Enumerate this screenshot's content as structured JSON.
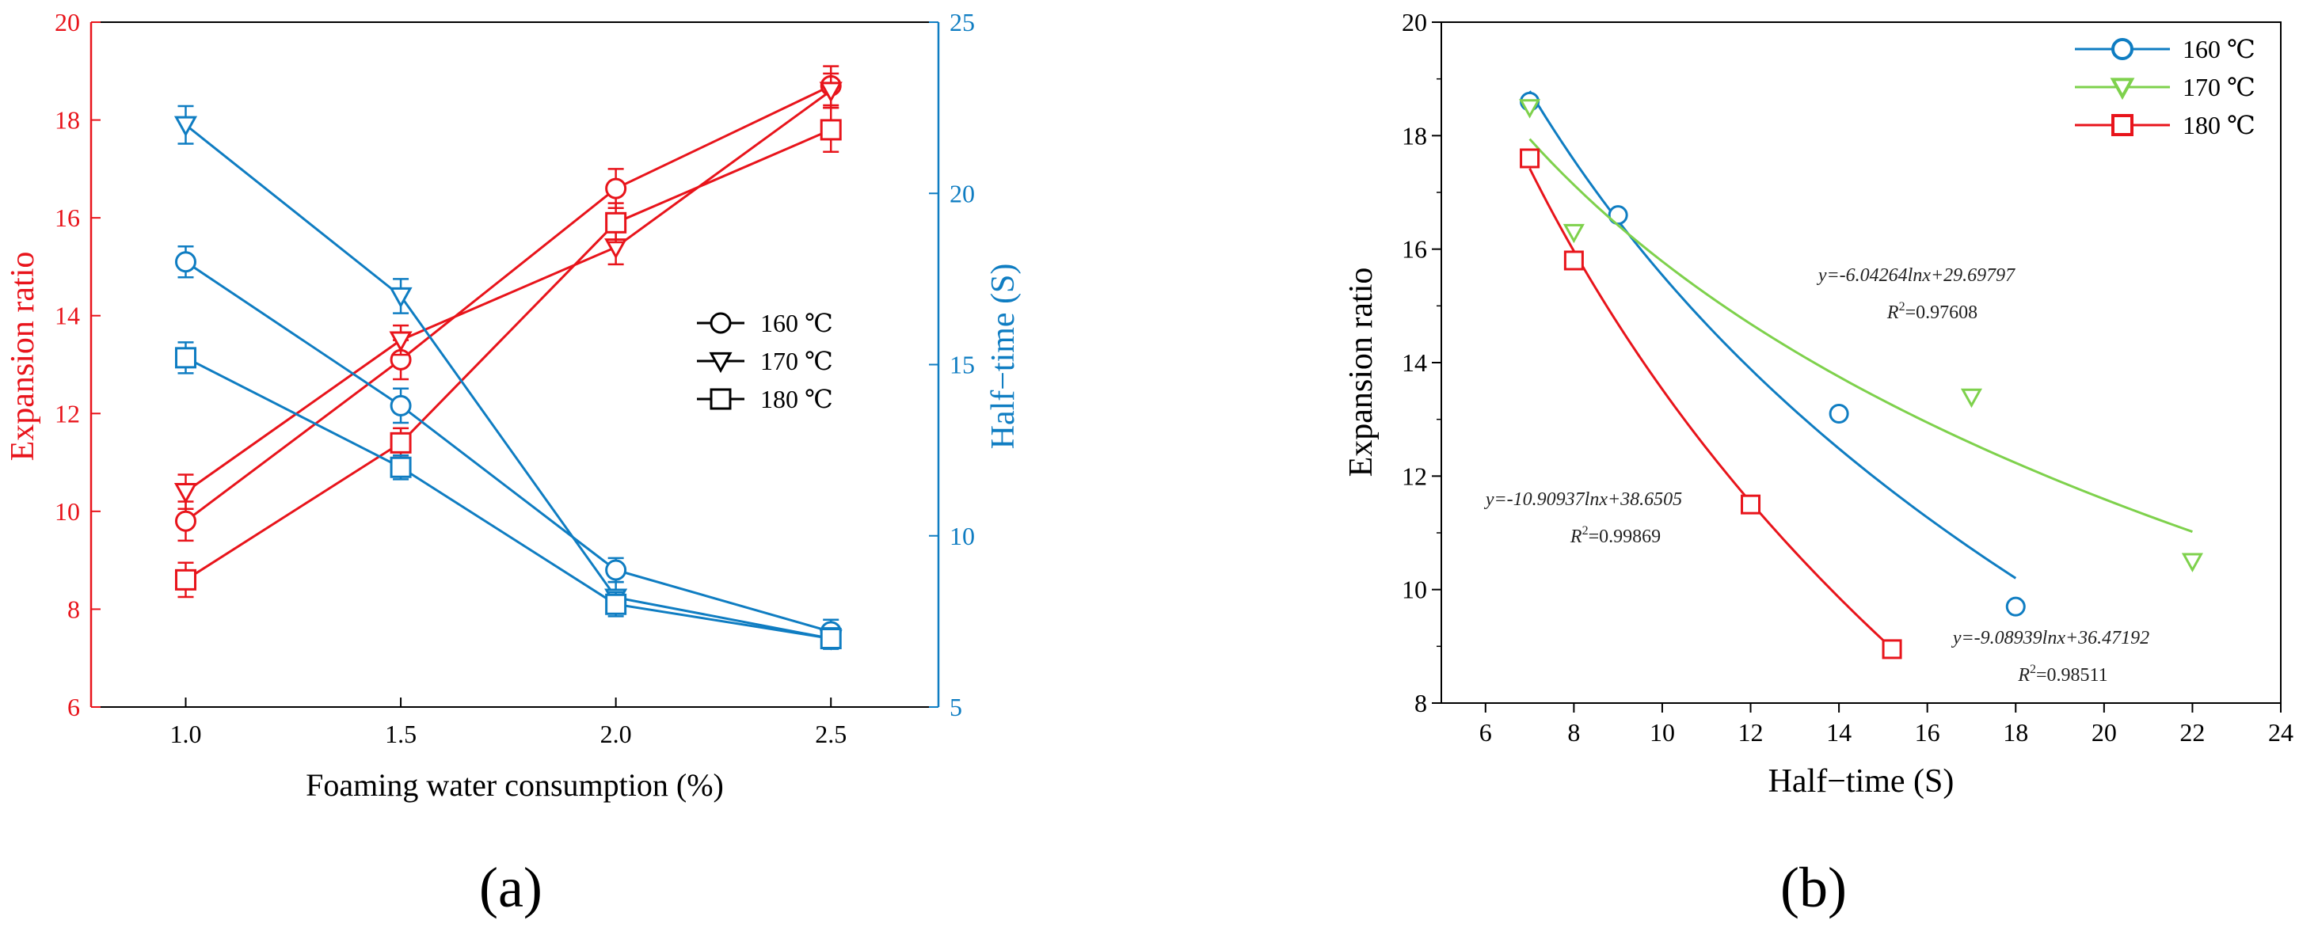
{
  "chart_data": [
    {
      "id": "a",
      "type": "line",
      "panel_label": "(a)",
      "xlabel": "Foaming water consumption (%)",
      "ylabel": "Expansion ratio",
      "y2label": "Half−time (S)",
      "x": [
        1.0,
        1.5,
        2.0,
        2.5
      ],
      "xticks": [
        "1.0",
        "1.5",
        "2.0",
        "2.5"
      ],
      "xlim": [
        0.78,
        2.75
      ],
      "ylim": [
        6,
        20
      ],
      "yticks": [
        "6",
        "8",
        "10",
        "12",
        "14",
        "16",
        "18",
        "20"
      ],
      "y2lim": [
        5,
        25
      ],
      "y2ticks": [
        "5",
        "10",
        "15",
        "20",
        "25"
      ],
      "left_color": "#e8141b",
      "right_color": "#0f7dc2",
      "legend": [
        "160 ℃",
        "170 ℃",
        "180 ℃"
      ],
      "series": [
        {
          "name": "160 ℃",
          "marker": "circle",
          "axis": "left",
          "values": [
            9.8,
            13.1,
            16.6,
            18.7
          ],
          "err": [
            0.4,
            0.4,
            0.4,
            0.4
          ]
        },
        {
          "name": "170 ℃",
          "marker": "triangle",
          "axis": "left",
          "values": [
            10.4,
            13.5,
            15.4,
            18.6
          ],
          "err": [
            0.35,
            0.3,
            0.35,
            0.35
          ]
        },
        {
          "name": "180 ℃",
          "marker": "square",
          "axis": "left",
          "values": [
            8.6,
            11.4,
            15.9,
            17.8
          ],
          "err": [
            0.35,
            0.3,
            0.4,
            0.45
          ]
        },
        {
          "name": "160 ℃",
          "marker": "circle",
          "axis": "right",
          "values": [
            18.0,
            13.8,
            9.0,
            7.2
          ],
          "err": [
            0.45,
            0.5,
            0.35,
            0.35
          ]
        },
        {
          "name": "170 ℃",
          "marker": "triangle",
          "axis": "right",
          "values": [
            22.0,
            17.0,
            8.2,
            7.0
          ],
          "err": [
            0.55,
            0.5,
            0.45,
            0.3
          ]
        },
        {
          "name": "180 ℃",
          "marker": "square",
          "axis": "right",
          "values": [
            15.2,
            12.0,
            8.0,
            7.0
          ],
          "err": [
            0.45,
            0.35,
            0.35,
            0.3
          ]
        }
      ]
    },
    {
      "id": "b",
      "type": "scatter",
      "panel_label": "(b)",
      "xlabel": "Half−time (S)",
      "ylabel": "Expansion ratio",
      "xlim": [
        5,
        24
      ],
      "xticks": [
        "6",
        "8",
        "10",
        "12",
        "14",
        "16",
        "18",
        "20",
        "22",
        "24"
      ],
      "ylim": [
        8,
        20
      ],
      "yticks": [
        "8",
        "10",
        "12",
        "14",
        "16",
        "18",
        "20"
      ],
      "legend": [
        "160 ℃",
        "170 ℃",
        "180 ℃"
      ],
      "series": [
        {
          "name": "160 ℃",
          "marker": "circle",
          "color": "#0f7dc2",
          "x": [
            7,
            9,
            14,
            18
          ],
          "y": [
            18.6,
            16.6,
            13.1,
            9.7
          ],
          "fit": {
            "a": -9.08939,
            "b": 36.47192,
            "x_range": [
              7,
              18
            ]
          }
        },
        {
          "name": "170 ℃",
          "marker": "triangle",
          "color": "#7ed14c",
          "x": [
            7,
            8,
            17,
            22
          ],
          "y": [
            18.5,
            16.3,
            13.4,
            10.5
          ],
          "fit": {
            "a": -6.04264,
            "b": 29.69797,
            "x_range": [
              7,
              22
            ]
          }
        },
        {
          "name": "180 ℃",
          "marker": "square",
          "color": "#e8141b",
          "x": [
            7,
            8,
            12,
            15.2
          ],
          "y": [
            17.6,
            15.8,
            11.5,
            8.95
          ],
          "fit": {
            "a": -10.90937,
            "b": 38.6505,
            "x_range": [
              7,
              15.2
            ]
          }
        }
      ],
      "annotations": [
        {
          "eq": "y=-6.04264lnx+29.69797",
          "r2_prefix": "R",
          "r2_value": "=0.97608"
        },
        {
          "eq": "y=-10.90937lnx+38.6505",
          "r2_prefix": "R",
          "r2_value": "=0.99869"
        },
        {
          "eq": "y=-9.08939lnx+36.47192",
          "r2_prefix": "R",
          "r2_value": "=0.98511"
        }
      ]
    }
  ]
}
